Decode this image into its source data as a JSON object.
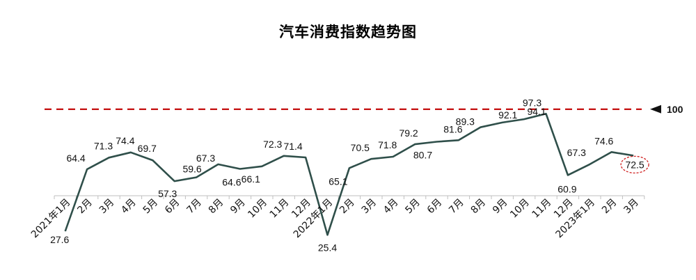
{
  "chart_data": {
    "type": "line",
    "title": "汽车消费指数趋势图",
    "categories": [
      "2021年1月",
      "2月",
      "3月",
      "4月",
      "5月",
      "6月",
      "7月",
      "8月",
      "9月",
      "10月",
      "11月",
      "12月",
      "2022年1月",
      "2月",
      "3月",
      "4月",
      "5月",
      "6月",
      "7月",
      "8月",
      "9月",
      "10月",
      "11月",
      "12月",
      "2023年1月",
      "2月",
      "3月"
    ],
    "values": [
      27.6,
      64.4,
      71.3,
      74.4,
      69.7,
      57.3,
      59.6,
      67.3,
      64.6,
      66.1,
      72.3,
      71.4,
      25.4,
      65.1,
      70.5,
      71.8,
      79.2,
      80.7,
      81.6,
      89.3,
      92.1,
      94.1,
      97.3,
      60.9,
      67.3,
      74.6,
      72.5
    ],
    "data_labels": [
      "27.6",
      "64.4",
      "71.3",
      "74.4",
      "69.7",
      "57.3",
      "59.6",
      "67.3",
      "64.6",
      "66.1",
      "72.3",
      "71.4",
      "25.4",
      "65.1",
      "70.5",
      "71.8",
      "79.2",
      "80.7",
      "81.6",
      "89.3",
      "92.1",
      "94.1",
      "97.3",
      "60.9",
      "67.3",
      "74.6",
      "72.5"
    ],
    "reference_line": {
      "value": 100,
      "label": "100",
      "style": "dashed",
      "color": "#c00000"
    },
    "highlight_last_point": true,
    "line_color": "#2f4f4a",
    "grid": false
  }
}
